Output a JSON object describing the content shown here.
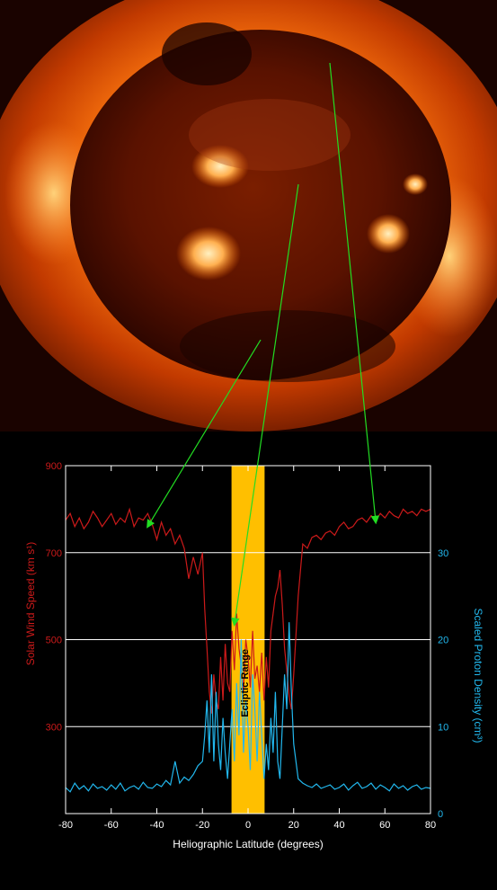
{
  "image": {
    "subject": "sun-xray",
    "colors": {
      "corona": "#ff6a00",
      "disk": "#5a0f00",
      "highlight": "#ffd27a",
      "arrow": "#22dd22"
    }
  },
  "chart_data": {
    "type": "line",
    "xlabel": "Heliographic Latitude (degrees)",
    "ylabel_left": "Solar Wind Speed (km s¹)",
    "ylabel_right": "Scaled Proton Density (cm³)",
    "band_label": "Ecliptic Range",
    "xlim": [
      -80,
      80
    ],
    "ylim_left": [
      100,
      900
    ],
    "ylim_right": [
      0,
      40
    ],
    "x_ticks": [
      -80,
      -60,
      -40,
      -20,
      0,
      20,
      40,
      60,
      80
    ],
    "y_ticks_left": [
      300,
      500,
      700,
      900
    ],
    "y_ticks_right": [
      0,
      10,
      20,
      30
    ],
    "gridlines_left": [
      300,
      500,
      700
    ],
    "ecliptic_band": [
      -7.25,
      7.25
    ],
    "colors": {
      "speed": "#cc1a1a",
      "density": "#22b8ee",
      "band": "#ffbf00",
      "axis_left": "#cc1a1a",
      "axis_right": "#22b8ee",
      "grid": "#ffffff"
    },
    "series": [
      {
        "name": "Solar Wind Speed",
        "axis": "left",
        "x": [
          -80,
          -78,
          -76,
          -74,
          -72,
          -70,
          -68,
          -66,
          -64,
          -62,
          -60,
          -58,
          -56,
          -54,
          -52,
          -50,
          -48,
          -46,
          -44,
          -42,
          -40,
          -38,
          -36,
          -34,
          -32,
          -30,
          -28,
          -26,
          -24,
          -22,
          -20,
          -19,
          -18,
          -17,
          -16,
          -15,
          -14,
          -13,
          -12,
          -11,
          -10,
          -9,
          -8,
          -7,
          -6,
          -5,
          -4,
          -3,
          -2,
          -1,
          0,
          1,
          2,
          3,
          4,
          5,
          6,
          7,
          8,
          9,
          10,
          11,
          12,
          13,
          14,
          15,
          16,
          17,
          18,
          19,
          20,
          22,
          24,
          26,
          28,
          30,
          32,
          34,
          36,
          38,
          40,
          42,
          44,
          46,
          48,
          50,
          52,
          54,
          56,
          58,
          60,
          62,
          64,
          66,
          68,
          70,
          72,
          74,
          76,
          78,
          80
        ],
        "y": [
          775,
          790,
          760,
          780,
          755,
          770,
          795,
          780,
          760,
          775,
          790,
          765,
          780,
          770,
          800,
          760,
          780,
          775,
          790,
          765,
          730,
          770,
          740,
          755,
          720,
          740,
          710,
          640,
          690,
          650,
          700,
          570,
          480,
          380,
          330,
          420,
          360,
          340,
          460,
          360,
          490,
          400,
          380,
          520,
          430,
          560,
          480,
          440,
          380,
          500,
          460,
          390,
          520,
          410,
          440,
          380,
          470,
          360,
          460,
          390,
          520,
          560,
          600,
          620,
          660,
          580,
          480,
          430,
          370,
          340,
          420,
          600,
          720,
          710,
          735,
          740,
          730,
          745,
          750,
          740,
          760,
          770,
          755,
          760,
          775,
          780,
          770,
          785,
          775,
          790,
          780,
          795,
          785,
          780,
          800,
          790,
          795,
          785,
          800,
          795,
          800
        ]
      },
      {
        "name": "Scaled Proton Density",
        "axis": "right",
        "x": [
          -80,
          -78,
          -76,
          -74,
          -72,
          -70,
          -68,
          -66,
          -64,
          -62,
          -60,
          -58,
          -56,
          -54,
          -52,
          -50,
          -48,
          -46,
          -44,
          -42,
          -40,
          -38,
          -36,
          -34,
          -32,
          -30,
          -28,
          -26,
          -24,
          -22,
          -20,
          -19,
          -18,
          -17,
          -16,
          -15,
          -14,
          -13,
          -12,
          -11,
          -10,
          -9,
          -8,
          -7,
          -6,
          -5,
          -4,
          -3,
          -2,
          -1,
          0,
          1,
          2,
          3,
          4,
          5,
          6,
          7,
          8,
          9,
          10,
          11,
          12,
          13,
          14,
          15,
          16,
          17,
          18,
          19,
          20,
          22,
          24,
          26,
          28,
          30,
          32,
          34,
          36,
          38,
          40,
          42,
          44,
          46,
          48,
          50,
          52,
          54,
          56,
          58,
          60,
          62,
          64,
          66,
          68,
          70,
          72,
          74,
          76,
          78,
          80
        ],
        "y": [
          3,
          2.5,
          3.5,
          2.8,
          3.2,
          2.6,
          3.4,
          2.9,
          3.1,
          2.7,
          3.3,
          2.8,
          3.5,
          2.6,
          3.0,
          3.2,
          2.8,
          3.6,
          3.0,
          2.9,
          3.4,
          3.1,
          3.8,
          3.3,
          6,
          3.5,
          4.2,
          3.8,
          4.5,
          5.5,
          6,
          9,
          13,
          7,
          16,
          6,
          14,
          8,
          5,
          11,
          7,
          4,
          8,
          12,
          6,
          15,
          9,
          20,
          7,
          13,
          10,
          5,
          16,
          12,
          6,
          14,
          9,
          4,
          8,
          5,
          11,
          7,
          14,
          6,
          4,
          10,
          16,
          12,
          22,
          14,
          8,
          4,
          3.5,
          3.2,
          3.0,
          3.4,
          2.9,
          3.1,
          3.3,
          2.8,
          3.0,
          3.4,
          2.7,
          3.2,
          3.6,
          2.9,
          3.1,
          3.5,
          2.8,
          3.3,
          3.0,
          2.6,
          3.4,
          2.9,
          3.2,
          2.7,
          3.1,
          3.3,
          2.8,
          3.0,
          2.9
        ]
      }
    ],
    "arrows_to": [
      {
        "x": -44,
        "y": 760
      },
      {
        "x": -6,
        "y": 535
      },
      {
        "x": 56,
        "y": 770
      }
    ]
  }
}
